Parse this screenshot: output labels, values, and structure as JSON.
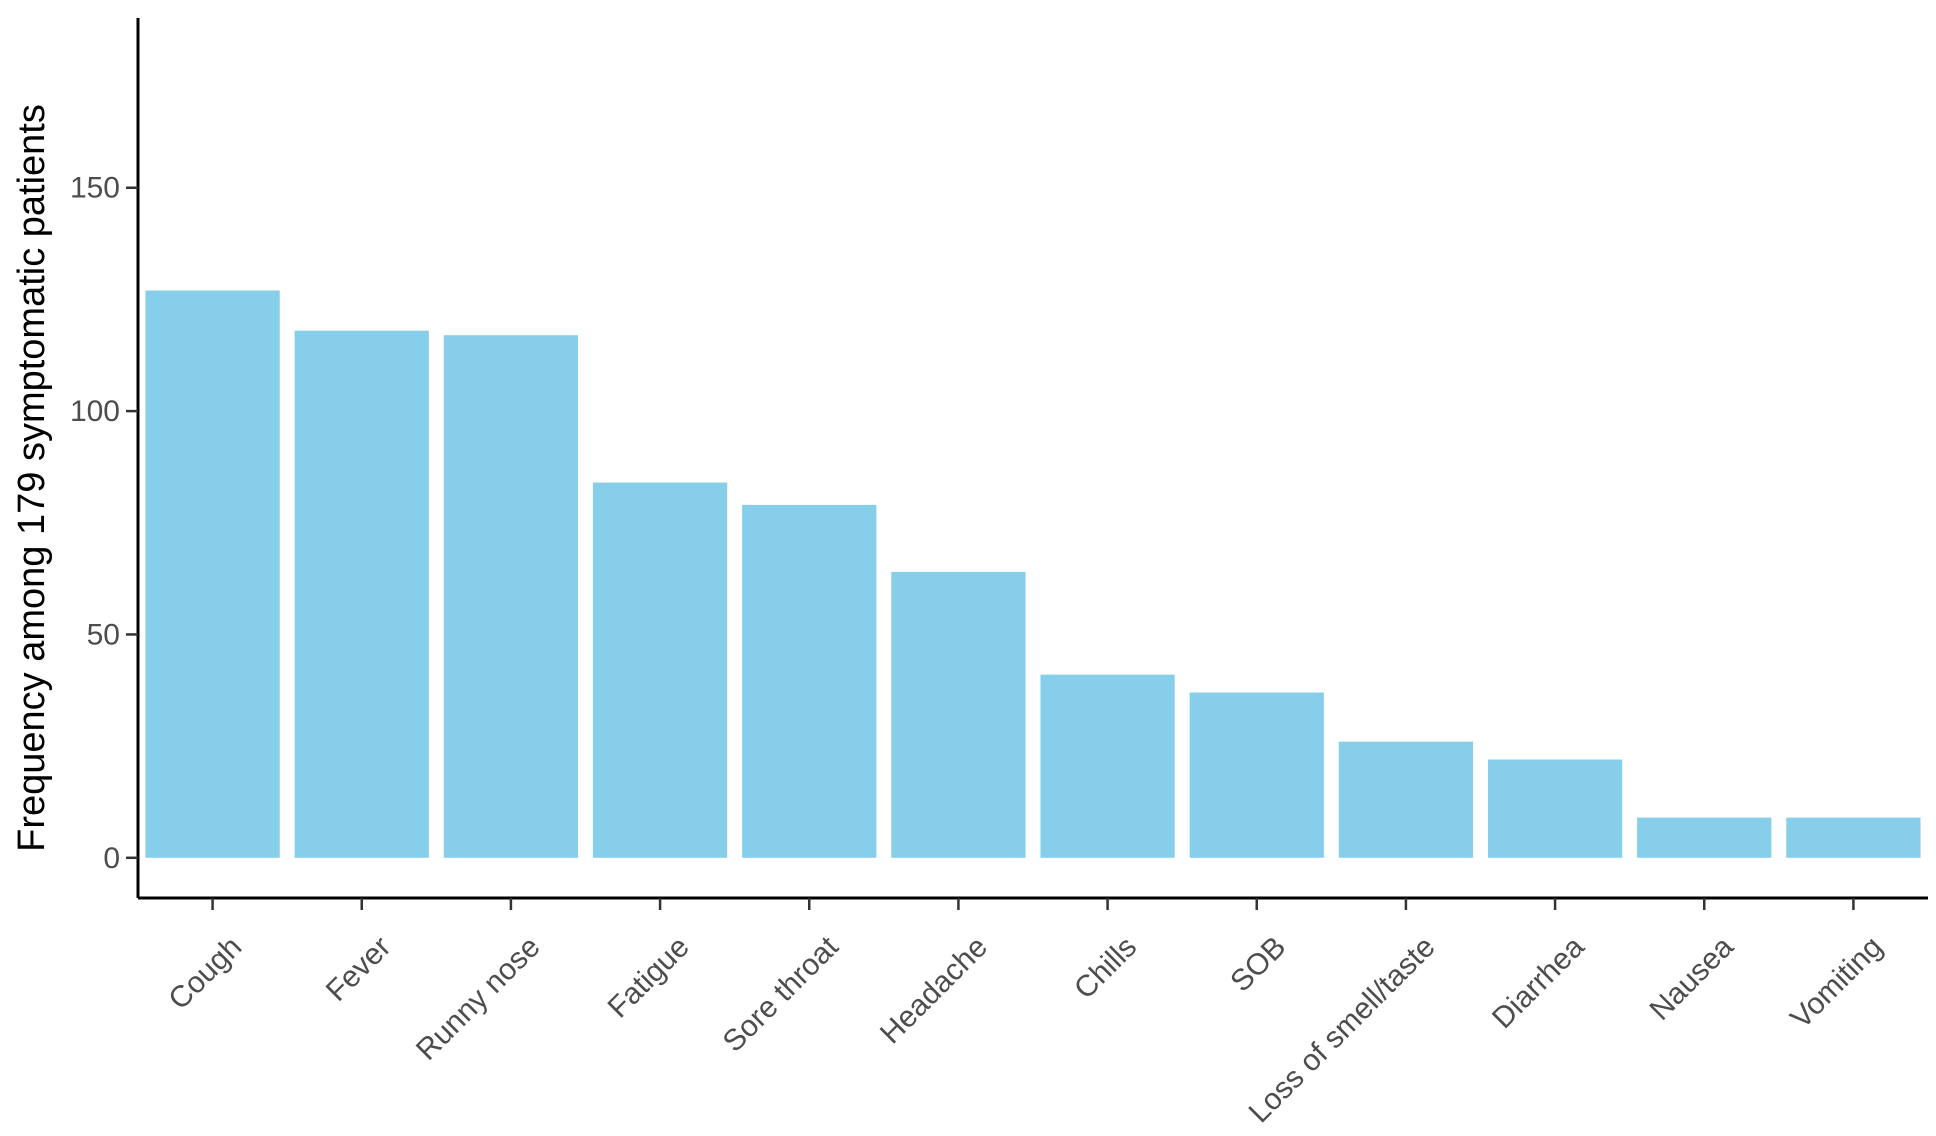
{
  "chart_data": {
    "type": "bar",
    "title": "",
    "xlabel": "",
    "ylabel": "Frequency among 179 symptomatic patients",
    "categories": [
      "Cough",
      "Fever",
      "Runny nose",
      "Fatigue",
      "Sore throat",
      "Headache",
      "Chills",
      "SOB",
      "Loss of smell/taste",
      "Diarrhea",
      "Nausea",
      "Vomiting"
    ],
    "values": [
      127,
      118,
      117,
      84,
      79,
      64,
      41,
      37,
      26,
      22,
      9,
      9
    ],
    "ylim": [
      -9,
      188
    ],
    "yticks": [
      0,
      50,
      100,
      150
    ],
    "bar_color": "#87CEEB",
    "grid": false,
    "legend": "none"
  }
}
